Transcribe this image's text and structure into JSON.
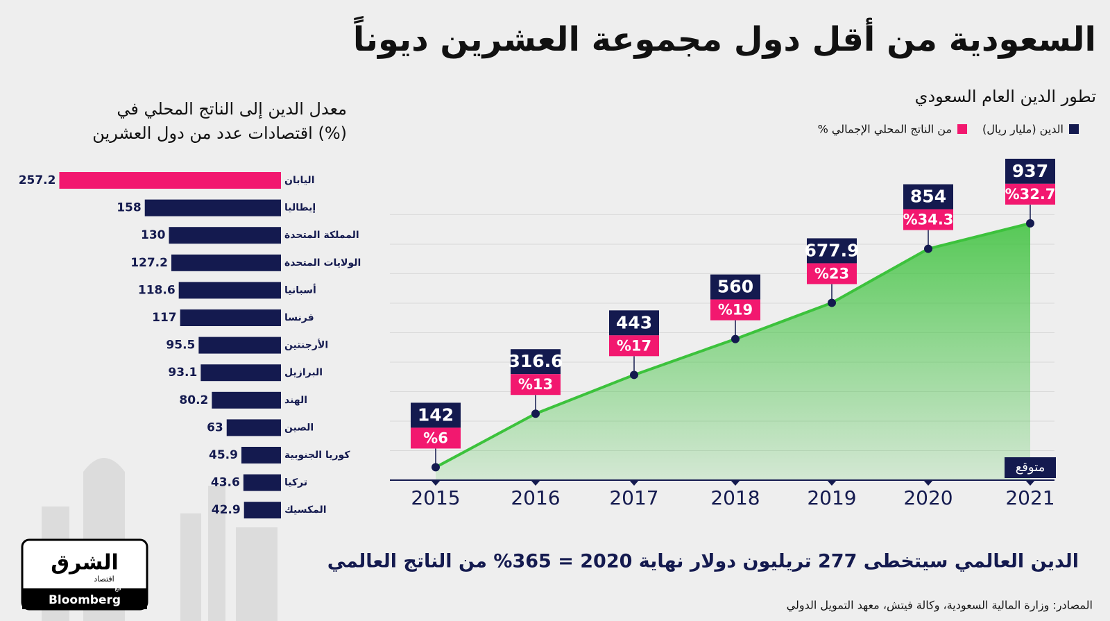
{
  "title": "السعودية من أقل دول مجموعة العشرين ديوناً",
  "note": "الدين العالمي سيتخطى 277 تريليون دولار نهاية 2020 = 365% من الناتج العالمي",
  "source": "المصادر: وزارة المالية السعودية، وكالة فيتش، معهد التمويل الدولي",
  "logo": {
    "name": "الشرق",
    "sub": "اقتصاد",
    "with": "مع",
    "partner": "Bloomberg"
  },
  "chart_data": [
    {
      "type": "hbar",
      "title": [
        "معدل الدين إلى الناتج المحلي في",
        "اقتصادات عدد من دول العشرين (%)"
      ],
      "categories": [
        "اليابان",
        "إيطاليا",
        "المملكة المتحدة",
        "الولايات المتحدة",
        "أسبانيا",
        "فرنسا",
        "الأرجنتين",
        "البرازيل",
        "الهند",
        "الصين",
        "كوريا الجنوبية",
        "تركيا",
        "المكسيك"
      ],
      "values": [
        257.2,
        158,
        130,
        127.2,
        118.6,
        117,
        95.5,
        93.1,
        80.2,
        63,
        45.9,
        43.6,
        42.9
      ],
      "colors": [
        "#f2186f",
        "#141a4f",
        "#141a4f",
        "#141a4f",
        "#141a4f",
        "#141a4f",
        "#141a4f",
        "#141a4f",
        "#141a4f",
        "#141a4f",
        "#141a4f",
        "#141a4f",
        "#141a4f"
      ],
      "xlim": [
        0,
        260
      ]
    },
    {
      "type": "area",
      "title": "تطور الدين العام السعودي",
      "categories": [
        "2015",
        "2016",
        "2017",
        "2018",
        "2019",
        "2020",
        "2021"
      ],
      "series": [
        {
          "name": "الدين (مليار ريال)",
          "color": "#141a4f",
          "values": [
            142,
            316.6,
            443,
            560,
            677.9,
            854,
            937
          ]
        },
        {
          "name": "% من الناتج المحلي الإجمالي",
          "color": "#f2186f",
          "values": [
            6,
            13,
            17,
            19,
            23,
            34.3,
            32.7
          ],
          "value_labels": [
            "%6",
            "%13",
            "%17",
            "%19",
            "%23",
            "%34.3",
            "%32.7"
          ]
        }
      ],
      "line_color": "#3cc23c",
      "annotation": "متوقع",
      "ylim": [
        100,
        1000
      ],
      "grid": true
    }
  ]
}
